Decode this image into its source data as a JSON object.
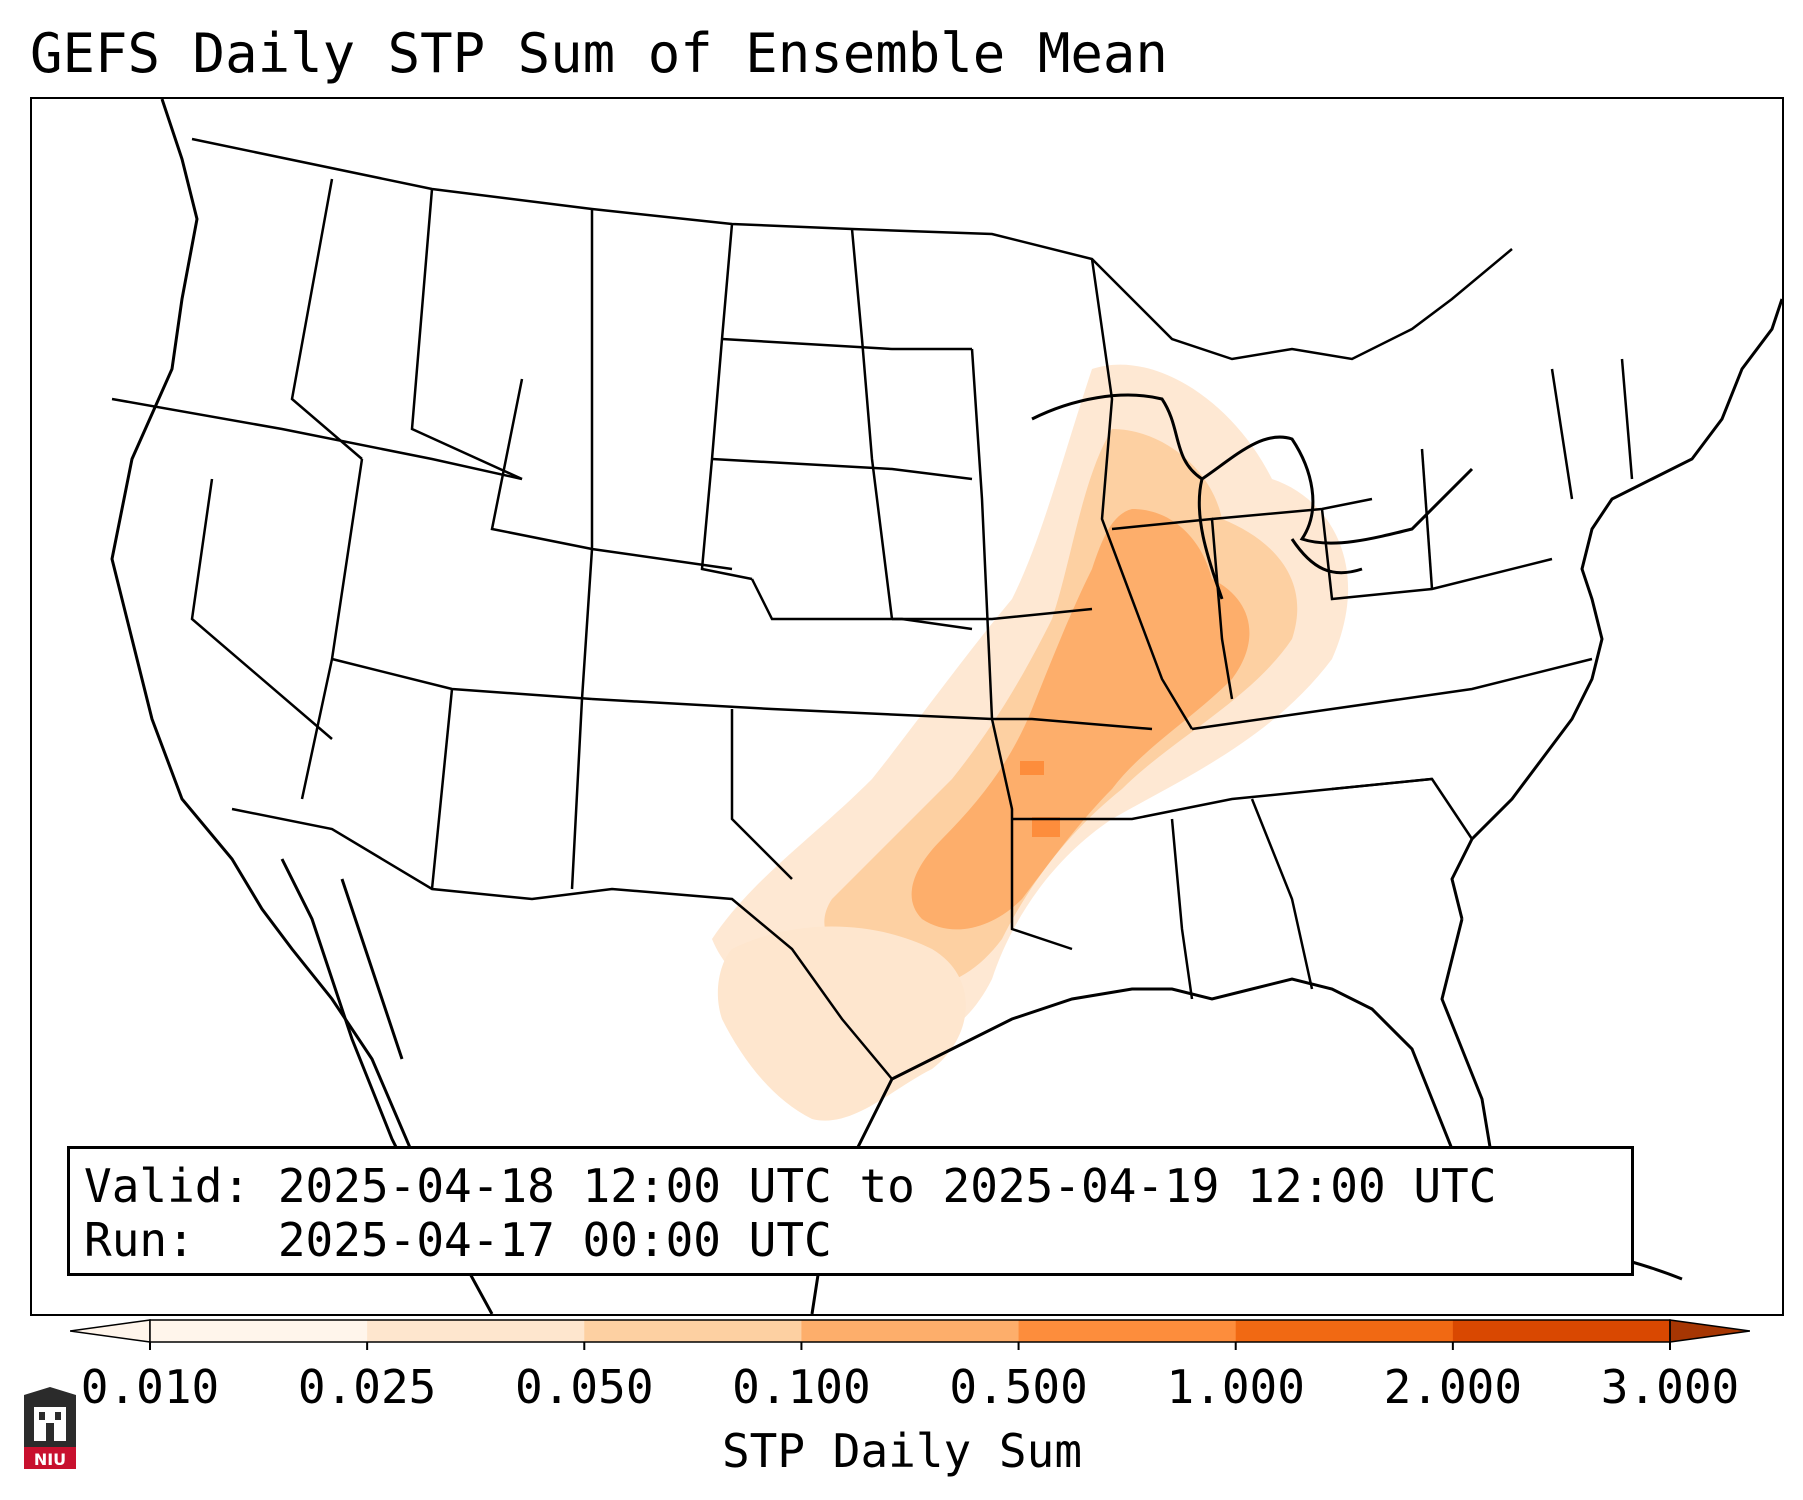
{
  "title": "GEFS Daily STP Sum of Ensemble Mean",
  "map": {
    "projection": "lambert-conformal-conus",
    "features": [
      "coastlines",
      "us-state-borders",
      "country-borders"
    ],
    "field": "STP daily sum (ensemble mean)",
    "region_peak": "Missouri / Arkansas / Illinois / Oklahoma"
  },
  "infobox": {
    "valid_line": "Valid: 2025-04-18 12:00 UTC to 2025-04-19 12:00 UTC",
    "run_line": "Run:   2025-04-17 00:00 UTC"
  },
  "colorbar": {
    "label": "STP Daily Sum",
    "ticks": [
      "0.010",
      "0.025",
      "0.050",
      "0.100",
      "0.500",
      "1.000",
      "2.000",
      "3.000"
    ],
    "colors": [
      "#fff5eb",
      "#fee6ce",
      "#fdd0a2",
      "#fdae6b",
      "#fd8d3c",
      "#f16913",
      "#d94801",
      "#a63603"
    ],
    "extend": "both"
  },
  "logo": {
    "text": "NIU",
    "icon": "niu-castle-logo-icon"
  }
}
